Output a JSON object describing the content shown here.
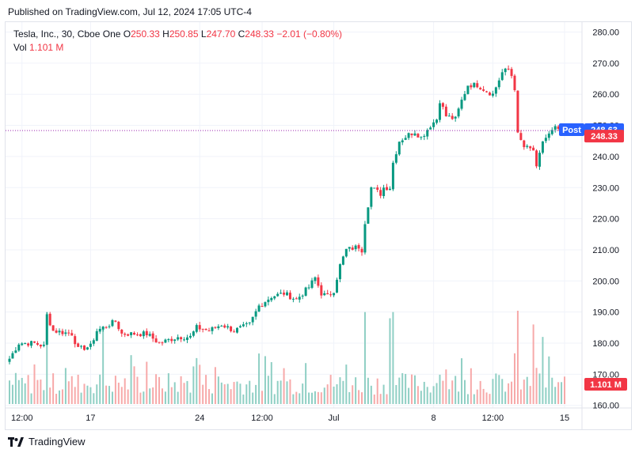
{
  "header": {
    "caption": "Published on TradingView.com, Jul 12, 2024 17:05 UTC-4"
  },
  "legend": {
    "symbol": "Tesla, Inc., 30, Cboe One",
    "o_label": "O",
    "o_value": "250.33",
    "h_label": "H",
    "h_value": "250.85",
    "l_label": "L",
    "l_value": "247.70",
    "c_label": "C",
    "c_value": "248.33",
    "change": "−2.01 (−0.80%)",
    "vol_label": "Vol",
    "vol_value": "1.101 M"
  },
  "badges": {
    "post_label": "Post",
    "post_price": "248.63",
    "last_price": "248.33",
    "volume": "1.101 M"
  },
  "footer": {
    "brand": "TradingView"
  },
  "colors": {
    "up": "#089981",
    "down": "#f23645",
    "vol_up": "#8fcfc4",
    "vol_down": "#f7a9a9",
    "post_badge": "#2962ff",
    "grid": "#f0f3fa",
    "axis_text": "#131722"
  },
  "chart_data": {
    "type": "candlestick",
    "y_ticks": [
      "280.00",
      "270.00",
      "260.00",
      "250.00",
      "240.00",
      "230.00",
      "220.00",
      "210.00",
      "200.00",
      "190.00",
      "180.00",
      "170.00",
      "160.00"
    ],
    "y_tick_values": [
      280,
      270,
      260,
      250,
      240,
      230,
      220,
      210,
      200,
      190,
      180,
      170,
      160
    ],
    "ylim": [
      160,
      280
    ],
    "x_ticks": [
      "12:00",
      "17",
      "24",
      "12:00",
      "Jul",
      "8",
      "12:00",
      "15"
    ],
    "x_tick_index": [
      4,
      26,
      61,
      81,
      104,
      136,
      155,
      178
    ],
    "close_anchors": [
      [
        0,
        175
      ],
      [
        3,
        180
      ],
      [
        8,
        180
      ],
      [
        11,
        179
      ],
      [
        12,
        189
      ],
      [
        14,
        184
      ],
      [
        20,
        183
      ],
      [
        22,
        178
      ],
      [
        26,
        179
      ],
      [
        28,
        184
      ],
      [
        34,
        187
      ],
      [
        36,
        183
      ],
      [
        44,
        183
      ],
      [
        48,
        180
      ],
      [
        54,
        182
      ],
      [
        58,
        182
      ],
      [
        60,
        185
      ],
      [
        64,
        184
      ],
      [
        68,
        186
      ],
      [
        72,
        184
      ],
      [
        77,
        186
      ],
      [
        80,
        192
      ],
      [
        84,
        195
      ],
      [
        88,
        196
      ],
      [
        92,
        194
      ],
      [
        96,
        198
      ],
      [
        98,
        201
      ],
      [
        100,
        196
      ],
      [
        102,
        195
      ],
      [
        104,
        197
      ],
      [
        106,
        205
      ],
      [
        108,
        210
      ],
      [
        112,
        211
      ],
      [
        113,
        210
      ],
      [
        114,
        219
      ],
      [
        116,
        230
      ],
      [
        119,
        228
      ],
      [
        120,
        230
      ],
      [
        122,
        230
      ],
      [
        123,
        238
      ],
      [
        125,
        245
      ],
      [
        128,
        247
      ],
      [
        130,
        248
      ],
      [
        132,
        246
      ],
      [
        135,
        250
      ],
      [
        137,
        252
      ],
      [
        138,
        258
      ],
      [
        140,
        253
      ],
      [
        143,
        252
      ],
      [
        145,
        258
      ],
      [
        147,
        263
      ],
      [
        150,
        263
      ],
      [
        153,
        261
      ],
      [
        155,
        260
      ],
      [
        158,
        267
      ],
      [
        160,
        268
      ],
      [
        161,
        266
      ],
      [
        162,
        262
      ],
      [
        163,
        247
      ],
      [
        165,
        243
      ],
      [
        168,
        242
      ],
      [
        169,
        236
      ],
      [
        171,
        245
      ],
      [
        175,
        249
      ],
      [
        178,
        248.33
      ]
    ],
    "volume_spikes": [
      [
        12,
        190
      ],
      [
        30,
        185
      ],
      [
        114,
        190
      ],
      [
        122,
        188
      ],
      [
        123,
        190
      ],
      [
        163,
        191
      ],
      [
        168,
        186
      ],
      [
        171,
        182
      ]
    ],
    "last_close": 248.33,
    "post_price": 248.63
  }
}
